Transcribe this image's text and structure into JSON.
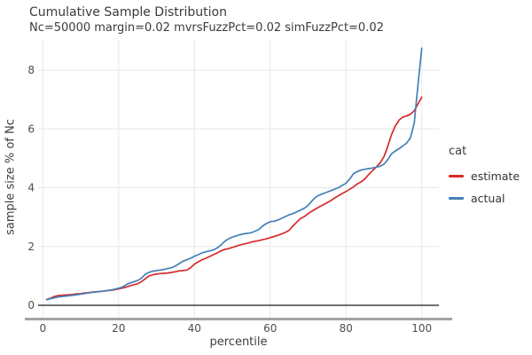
{
  "chart_data": {
    "type": "line",
    "title": "Cumulative Sample Distribution",
    "subtitle": "Nc=50000 margin=0.02 mvrsFuzzPct=0.02 simFuzzPct=0.02",
    "xlabel": "percentile",
    "ylabel": "sample size % of Nc",
    "legend_title": "cat",
    "legend_position": "right",
    "grid": true,
    "x_ticks": [
      0,
      20,
      40,
      60,
      80,
      100
    ],
    "y_ticks": [
      0,
      2,
      4,
      6,
      8
    ],
    "xlim": [
      -1,
      104
    ],
    "ylim": [
      -0.45,
      9.0
    ],
    "zero_line": 0,
    "colors": {
      "estimate": "#d62b2b",
      "actual": "#4480b8",
      "gridline": "#e9e9e9",
      "zero_line": "#1a1a1a",
      "axis_line": "#a3a3a3",
      "tick_text": "#4d4d4d",
      "title_text": "#3b3b3b"
    },
    "x": [
      1,
      2,
      3,
      4,
      5,
      6,
      7,
      8,
      9,
      10,
      11,
      12,
      13,
      14,
      15,
      16,
      17,
      18,
      19,
      20,
      21,
      22,
      23,
      24,
      25,
      26,
      27,
      28,
      29,
      30,
      31,
      32,
      33,
      34,
      35,
      36,
      37,
      38,
      39,
      40,
      41,
      42,
      43,
      44,
      45,
      46,
      47,
      48,
      49,
      50,
      51,
      52,
      53,
      54,
      55,
      56,
      57,
      58,
      59,
      60,
      61,
      62,
      63,
      64,
      65,
      66,
      67,
      68,
      69,
      70,
      71,
      72,
      73,
      74,
      75,
      76,
      77,
      78,
      79,
      80,
      81,
      82,
      83,
      84,
      85,
      86,
      87,
      88,
      89,
      90,
      91,
      92,
      93,
      94,
      95,
      96,
      97,
      98,
      99,
      100
    ],
    "series": [
      {
        "name": "estimate",
        "color": "#d62b2b",
        "values": [
          0.2,
          0.24,
          0.3,
          0.33,
          0.34,
          0.35,
          0.36,
          0.37,
          0.39,
          0.4,
          0.42,
          0.43,
          0.45,
          0.46,
          0.47,
          0.48,
          0.5,
          0.51,
          0.53,
          0.56,
          0.59,
          0.62,
          0.66,
          0.7,
          0.73,
          0.8,
          0.9,
          1.0,
          1.04,
          1.06,
          1.08,
          1.09,
          1.1,
          1.12,
          1.14,
          1.17,
          1.18,
          1.2,
          1.28,
          1.4,
          1.48,
          1.55,
          1.6,
          1.66,
          1.72,
          1.78,
          1.85,
          1.9,
          1.93,
          1.97,
          2.01,
          2.05,
          2.08,
          2.11,
          2.15,
          2.18,
          2.2,
          2.23,
          2.26,
          2.3,
          2.34,
          2.38,
          2.43,
          2.48,
          2.55,
          2.7,
          2.83,
          2.95,
          3.02,
          3.12,
          3.2,
          3.28,
          3.35,
          3.42,
          3.49,
          3.56,
          3.65,
          3.73,
          3.8,
          3.87,
          3.95,
          4.03,
          4.13,
          4.2,
          4.3,
          4.45,
          4.58,
          4.7,
          4.85,
          5.05,
          5.4,
          5.8,
          6.1,
          6.3,
          6.4,
          6.44,
          6.5,
          6.62,
          6.85,
          7.08
        ]
      },
      {
        "name": "actual",
        "color": "#4480b8",
        "values": [
          0.19,
          0.22,
          0.25,
          0.28,
          0.3,
          0.31,
          0.33,
          0.34,
          0.36,
          0.38,
          0.4,
          0.42,
          0.44,
          0.45,
          0.47,
          0.48,
          0.5,
          0.52,
          0.55,
          0.58,
          0.62,
          0.7,
          0.76,
          0.8,
          0.84,
          0.92,
          1.05,
          1.12,
          1.16,
          1.18,
          1.2,
          1.22,
          1.25,
          1.28,
          1.34,
          1.42,
          1.5,
          1.55,
          1.6,
          1.67,
          1.72,
          1.78,
          1.82,
          1.85,
          1.88,
          1.95,
          2.05,
          2.18,
          2.26,
          2.32,
          2.36,
          2.4,
          2.43,
          2.45,
          2.47,
          2.52,
          2.58,
          2.7,
          2.78,
          2.84,
          2.86,
          2.9,
          2.96,
          3.02,
          3.08,
          3.12,
          3.18,
          3.24,
          3.3,
          3.4,
          3.55,
          3.68,
          3.75,
          3.8,
          3.85,
          3.9,
          3.95,
          4.0,
          4.08,
          4.15,
          4.3,
          4.48,
          4.55,
          4.6,
          4.63,
          4.65,
          4.67,
          4.7,
          4.73,
          4.8,
          4.95,
          5.15,
          5.25,
          5.33,
          5.42,
          5.52,
          5.7,
          6.2,
          7.5,
          8.75
        ]
      }
    ]
  }
}
